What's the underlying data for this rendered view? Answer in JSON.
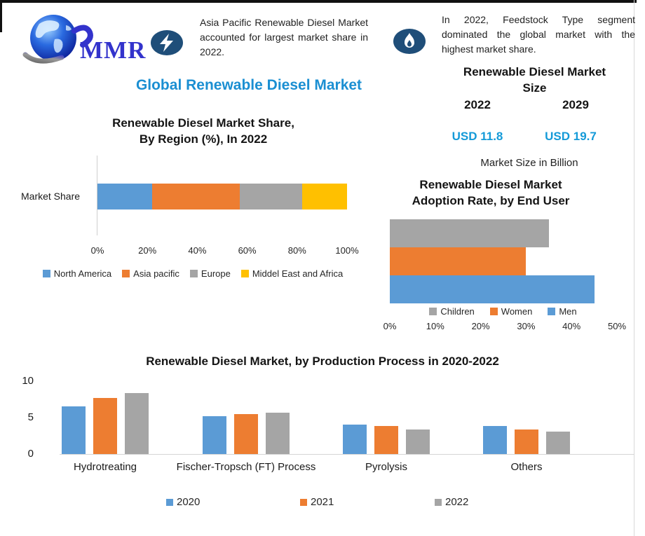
{
  "colors": {
    "blue": "#5B9BD5",
    "orange": "#ED7D31",
    "gray": "#A5A5A5",
    "yellow": "#FFC000",
    "title_blue": "#1B8FD2",
    "value_blue": "#149AD8",
    "icon_navy": "#1F4E79",
    "logo_blue": "#3333CC"
  },
  "header": {
    "logo_text": "MMR",
    "logo_icon": "globe-orbit",
    "callout_left_icon": "lightning-bolt",
    "callout_left": "Asia Pacific Renewable Diesel Market accounted for largest market share in 2022.",
    "callout_right_icon": "flame",
    "callout_right": "In 2022, Feedstock Type segment dominated the global market with the highest market share."
  },
  "main_title": "Global Renewable Diesel Market",
  "market_size": {
    "title": "Renewable Diesel Market\nSize",
    "year_left": "2022",
    "year_right": "2029",
    "value_left": "USD 11.8",
    "value_right": "USD 19.7",
    "unit_note": "Market Size in Billion"
  },
  "chart_data": [
    {
      "type": "bar",
      "subtype": "horizontal-stacked",
      "title": "Renewable Diesel Market Share,\nBy Region (%), In 2022",
      "category": "Market Share",
      "series": [
        {
          "name": "North America",
          "value": 22,
          "color": "#5B9BD5"
        },
        {
          "name": "Asia pacific",
          "value": 35,
          "color": "#ED7D31"
        },
        {
          "name": "Europe",
          "value": 25,
          "color": "#A5A5A5"
        },
        {
          "name": "Middel East and Africa",
          "value": 18,
          "color": "#FFC000"
        }
      ],
      "x_ticks": [
        "0%",
        "20%",
        "40%",
        "60%",
        "80%",
        "100%"
      ],
      "xlim": [
        0,
        100
      ],
      "legend_position": "bottom",
      "grid": false
    },
    {
      "type": "bar",
      "subtype": "horizontal",
      "title": "Renewable Diesel Market\nAdoption Rate, by End User",
      "series": [
        {
          "name": "Children",
          "value": 35,
          "color": "#A5A5A5"
        },
        {
          "name": "Women",
          "value": 30,
          "color": "#ED7D31"
        },
        {
          "name": "Men",
          "value": 45,
          "color": "#5B9BD5"
        }
      ],
      "x_ticks": [
        "0%",
        "10%",
        "20%",
        "30%",
        "40%",
        "50%"
      ],
      "xlim": [
        0,
        50
      ],
      "legend_position": "bottom",
      "grid": false
    },
    {
      "type": "bar",
      "subtype": "vertical-grouped",
      "title": "Renewable Diesel Market, by Production Process in 2020-2022",
      "categories": [
        "Hydrotreating",
        "Fischer-Tropsch (FT) Process",
        "Pyrolysis",
        "Others"
      ],
      "series": [
        {
          "name": "2020",
          "color": "#5B9BD5",
          "values": [
            6.5,
            5.2,
            4.0,
            3.8
          ]
        },
        {
          "name": "2021",
          "color": "#ED7D31",
          "values": [
            7.7,
            5.5,
            3.8,
            3.4
          ]
        },
        {
          "name": "2022",
          "color": "#A5A5A5",
          "values": [
            8.4,
            5.7,
            3.4,
            3.1
          ]
        }
      ],
      "y_ticks": [
        0,
        5,
        10
      ],
      "ylim": [
        0,
        10
      ],
      "legend_position": "bottom",
      "grid": false
    }
  ]
}
